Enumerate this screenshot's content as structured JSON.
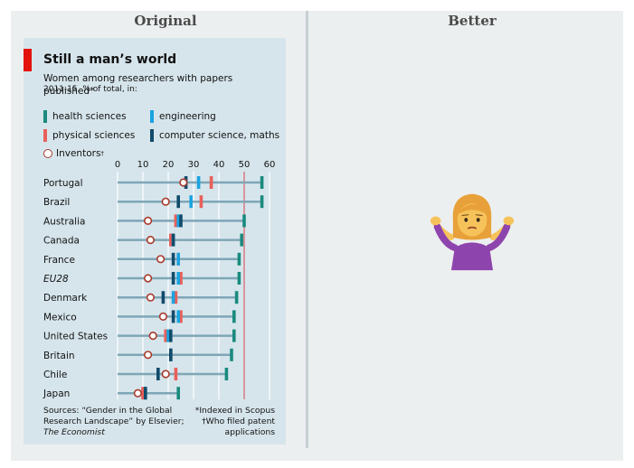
{
  "panels": {
    "left_title": "Original",
    "right_title": "Better"
  },
  "card": {
    "title": "Still a man’s world",
    "subtitle": "Women among researchers with papers published*",
    "subtitle2": "2011-15, % of total, in:",
    "legend": {
      "health": "health sciences",
      "engineering": "engineering",
      "physical": "physical sciences",
      "cs": "computer science, maths",
      "inventors": "Inventors",
      "inventors_mark": "†"
    },
    "source_line1": "Sources: “Gender in the Global",
    "source_line2": "Research Landscape” by Elsevier;",
    "source_line3": "The Economist",
    "note_line1": "*Indexed in Scopus",
    "note_line2": "†Who filed patent",
    "note_line3": "applications"
  },
  "colors": {
    "health": "#1a8a7e",
    "engineering": "#1ba3e0",
    "physical": "#e8605a",
    "cs": "#124b6b",
    "inventor_ring": "#a83a2c",
    "fifty_line": "#d9434e",
    "track": "#7fa6b6"
  },
  "emoji": {
    "name": "shrug-emoji-icon",
    "meaning": "person shrugging"
  },
  "chart_data": {
    "type": "dot",
    "x_ticks": [
      0,
      10,
      20,
      30,
      40,
      50,
      60
    ],
    "xlim": [
      0,
      60
    ],
    "highlight_x": 50,
    "categories": [
      "Portugal",
      "Brazil",
      "Australia",
      "Canada",
      "France",
      "EU28",
      "Denmark",
      "Mexico",
      "United States",
      "Britain",
      "Chile",
      "Japan"
    ],
    "series": [
      {
        "name": "health sciences",
        "key": "health",
        "values": [
          57,
          57,
          50,
          49,
          48,
          48,
          47,
          46,
          46,
          45,
          43,
          24
        ]
      },
      {
        "name": "engineering",
        "key": "engineering",
        "values": [
          32,
          29,
          24,
          22,
          24,
          24,
          22,
          24,
          20,
          21,
          16,
          11
        ]
      },
      {
        "name": "physical sciences",
        "key": "physical",
        "values": [
          37,
          33,
          23,
          21,
          24,
          25,
          23,
          25,
          19,
          21,
          23,
          10
        ]
      },
      {
        "name": "computer science, maths",
        "key": "cs",
        "values": [
          27,
          24,
          25,
          22,
          22,
          22,
          18,
          22,
          21,
          21,
          16,
          11
        ]
      },
      {
        "name": "Inventors",
        "key": "inventors",
        "values": [
          26,
          19,
          12,
          13,
          17,
          12,
          13,
          18,
          14,
          12,
          19,
          8
        ]
      }
    ]
  }
}
